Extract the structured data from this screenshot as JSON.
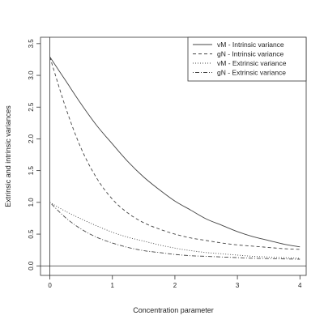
{
  "chart_data": {
    "type": "line",
    "xlabel": "Concentration parameter",
    "ylabel": "Extrinsic and intrinsic variances",
    "xlim": [
      -0.15,
      4.1
    ],
    "ylim": [
      -0.15,
      3.6
    ],
    "x_ticks": [
      0,
      1,
      2,
      3,
      4
    ],
    "y_ticks": [
      0.0,
      0.5,
      1.0,
      1.5,
      2.0,
      2.5,
      3.0,
      3.5
    ],
    "x_tick_labels": [
      "0",
      "1",
      "2",
      "3",
      "4"
    ],
    "y_tick_labels": [
      "0.0",
      "0.5",
      "1.0",
      "1.5",
      "2.0",
      "2.5",
      "3.0",
      "3.5"
    ],
    "reference_lines": {
      "horizontal_y": 0,
      "vertical_x": 0
    },
    "legend_position": "top-right",
    "series": [
      {
        "name": "vM - Intrinsic variance",
        "line_style": "solid",
        "x": [
          0,
          0.25,
          0.5,
          0.75,
          1.0,
          1.25,
          1.5,
          1.75,
          2.0,
          2.25,
          2.5,
          2.75,
          3.0,
          3.25,
          3.5,
          3.75,
          4.0
        ],
        "values": [
          3.29,
          2.92,
          2.55,
          2.21,
          1.92,
          1.64,
          1.4,
          1.2,
          1.02,
          0.88,
          0.74,
          0.64,
          0.54,
          0.46,
          0.4,
          0.34,
          0.3
        ]
      },
      {
        "name": "gN - Intrinsic variance",
        "line_style": "dashed",
        "x": [
          0,
          0.25,
          0.5,
          0.75,
          1.0,
          1.25,
          1.5,
          1.75,
          2.0,
          2.25,
          2.5,
          2.75,
          3.0,
          3.25,
          3.5,
          3.75,
          4.0
        ],
        "values": [
          3.29,
          2.5,
          1.85,
          1.38,
          1.05,
          0.83,
          0.68,
          0.58,
          0.5,
          0.44,
          0.4,
          0.36,
          0.33,
          0.31,
          0.29,
          0.27,
          0.26
        ]
      },
      {
        "name": "vM - Extrinsic variance",
        "line_style": "dotted",
        "x": [
          0,
          0.25,
          0.5,
          0.75,
          1.0,
          1.25,
          1.5,
          1.75,
          2.0,
          2.25,
          2.5,
          2.75,
          3.0,
          3.25,
          3.5,
          3.75,
          4.0
        ],
        "values": [
          1.0,
          0.86,
          0.74,
          0.63,
          0.53,
          0.45,
          0.39,
          0.33,
          0.28,
          0.24,
          0.21,
          0.19,
          0.17,
          0.15,
          0.14,
          0.13,
          0.12
        ]
      },
      {
        "name": "gN - Extrinsic variance",
        "line_style": "dotdash",
        "x": [
          0,
          0.25,
          0.5,
          0.75,
          1.0,
          1.25,
          1.5,
          1.75,
          2.0,
          2.25,
          2.5,
          2.75,
          3.0,
          3.25,
          3.5,
          3.75,
          4.0
        ],
        "values": [
          1.0,
          0.76,
          0.58,
          0.45,
          0.36,
          0.29,
          0.24,
          0.21,
          0.18,
          0.16,
          0.15,
          0.14,
          0.13,
          0.12,
          0.115,
          0.11,
          0.105
        ]
      }
    ]
  }
}
